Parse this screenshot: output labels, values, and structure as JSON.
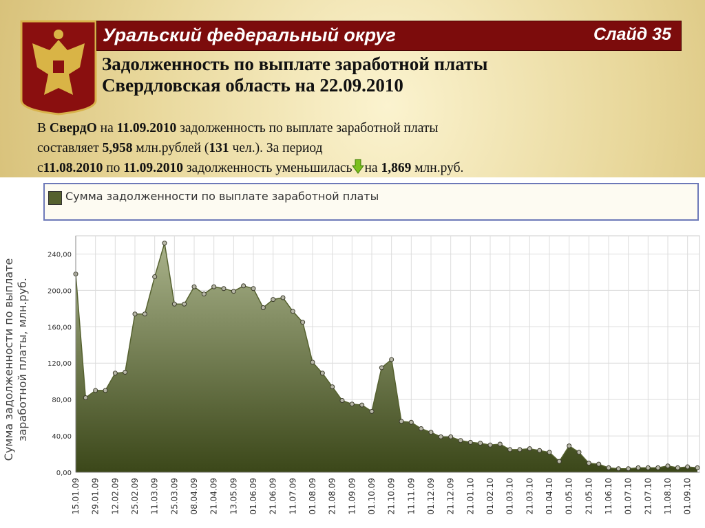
{
  "header": {
    "title": "Уральский федеральный округ",
    "slide": "Слайд 35"
  },
  "subtitle": [
    "Задолженность по выплате заработной платы",
    "Свердловская область на 22.09.2010"
  ],
  "paragraph": [
    [
      {
        "text": "В "
      },
      {
        "text": "СвердО",
        "bold": true
      },
      {
        "text": " на "
      },
      {
        "text": "11.09.2010",
        "bold": true
      },
      {
        "text": " задолженность по выплате заработной платы"
      }
    ],
    [
      {
        "text": "составляет "
      },
      {
        "text": "5,958",
        "bold": true
      },
      {
        "text": " млн.рублей ("
      },
      {
        "text": "131",
        "bold": true
      },
      {
        "text": " чел.). За период"
      }
    ],
    [
      {
        "text": "с"
      },
      {
        "text": "11.08.2010",
        "bold": true
      },
      {
        "text": " по "
      },
      {
        "text": "11.09.2010",
        "bold": true
      },
      {
        "text": " задолженность уменьшилась"
      },
      {
        "text": "на "
      },
      {
        "text": "1,869",
        "bold": true
      },
      {
        "text": " млн.руб."
      }
    ]
  ],
  "chart_data": {
    "type": "area",
    "y_label": "Сумма задолженности по выплате заработной платы, млн.руб.",
    "categories": [
      "15.01.09",
      null,
      "29.01.09",
      null,
      "12.02.09",
      null,
      "25.02.09",
      null,
      "11.03.09",
      null,
      "25.03.09",
      null,
      "08.04.09",
      null,
      "21.04.09",
      null,
      "13.05.09",
      null,
      "01.06.09",
      null,
      "21.06.09",
      null,
      "11.07.09",
      null,
      "01.08.09",
      null,
      "21.08.09",
      null,
      "11.09.09",
      null,
      "01.10.09",
      null,
      "21.10.09",
      null,
      "11.11.09",
      null,
      "01.12.09",
      null,
      "21.12.09",
      null,
      "21.01.10",
      null,
      "01.02.10",
      null,
      "01.03.10",
      null,
      "21.03.10",
      null,
      "01.04.10",
      null,
      "01.05.10",
      null,
      "21.05.10",
      null,
      "11.06.10",
      null,
      "01.07.10",
      null,
      "21.07.10",
      null,
      "11.08.10",
      null,
      "01.09.10",
      null
    ],
    "series": [
      {
        "name": "Сумма задолженности по выплате заработной платы",
        "color": "#55612f",
        "values": [
          218,
          82,
          90,
          90,
          109,
          110,
          174,
          174,
          215,
          252,
          185,
          185,
          204,
          196,
          204,
          202,
          199,
          205,
          202,
          181,
          190,
          192,
          177,
          165,
          121,
          109,
          94,
          79,
          75,
          74,
          67,
          115,
          124,
          56,
          55,
          48,
          44,
          39,
          39,
          35,
          33,
          32,
          30,
          31,
          25,
          25,
          26,
          24,
          22,
          12,
          29,
          22,
          10,
          9,
          5,
          4,
          4,
          5,
          5,
          5,
          7,
          5,
          6,
          5
        ]
      }
    ],
    "ylim": [
      0,
      260
    ],
    "yticks": [
      {
        "value": 0,
        "label": "0,00"
      },
      {
        "value": 40,
        "label": "40,00"
      },
      {
        "value": 80,
        "label": "80,00"
      },
      {
        "value": 120,
        "label": "120,00"
      },
      {
        "value": 160,
        "label": "160,00"
      },
      {
        "value": 200,
        "label": "200,00"
      },
      {
        "value": 240,
        "label": "240,00"
      }
    ],
    "grid": true
  }
}
